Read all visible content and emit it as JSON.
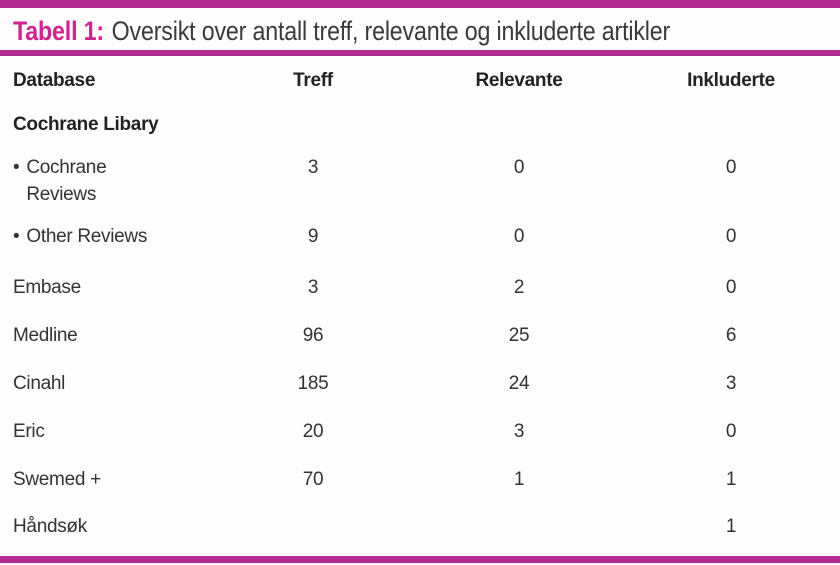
{
  "title": {
    "label": "Tabell 1:",
    "text": "Oversikt over antall treff, relevante og inkluderte artikler"
  },
  "colors": {
    "accent_bar": "#b32b90",
    "title_accent": "#d6208f",
    "body_text": "#333333"
  },
  "table": {
    "headers": {
      "database": "Database",
      "treff": "Treff",
      "relevante": "Relevante",
      "inkluderte": "Inkluderte"
    },
    "rows": [
      {
        "bullet": "",
        "database": "Cochrane Libary",
        "treff": "",
        "relevante": "",
        "inkluderte": ""
      },
      {
        "bullet": "•",
        "database": "Cochrane Reviews",
        "treff": "3",
        "relevante": "0",
        "inkluderte": "0"
      },
      {
        "bullet": "•",
        "database": "Other Reviews",
        "treff": "9",
        "relevante": "0",
        "inkluderte": "0"
      },
      {
        "bullet": "",
        "database": "Embase",
        "treff": "3",
        "relevante": "2",
        "inkluderte": "0"
      },
      {
        "bullet": "",
        "database": "Medline",
        "treff": "96",
        "relevante": "25",
        "inkluderte": "6"
      },
      {
        "bullet": "",
        "database": "Cinahl",
        "treff": "185",
        "relevante": "24",
        "inkluderte": "3"
      },
      {
        "bullet": "",
        "database": "Eric",
        "treff": "20",
        "relevante": "3",
        "inkluderte": "0"
      },
      {
        "bullet": "",
        "database": "Swemed +",
        "treff": "70",
        "relevante": "1",
        "inkluderte": "1"
      },
      {
        "bullet": "",
        "database": "Håndsøk",
        "treff": "",
        "relevante": "",
        "inkluderte": "1"
      }
    ]
  }
}
